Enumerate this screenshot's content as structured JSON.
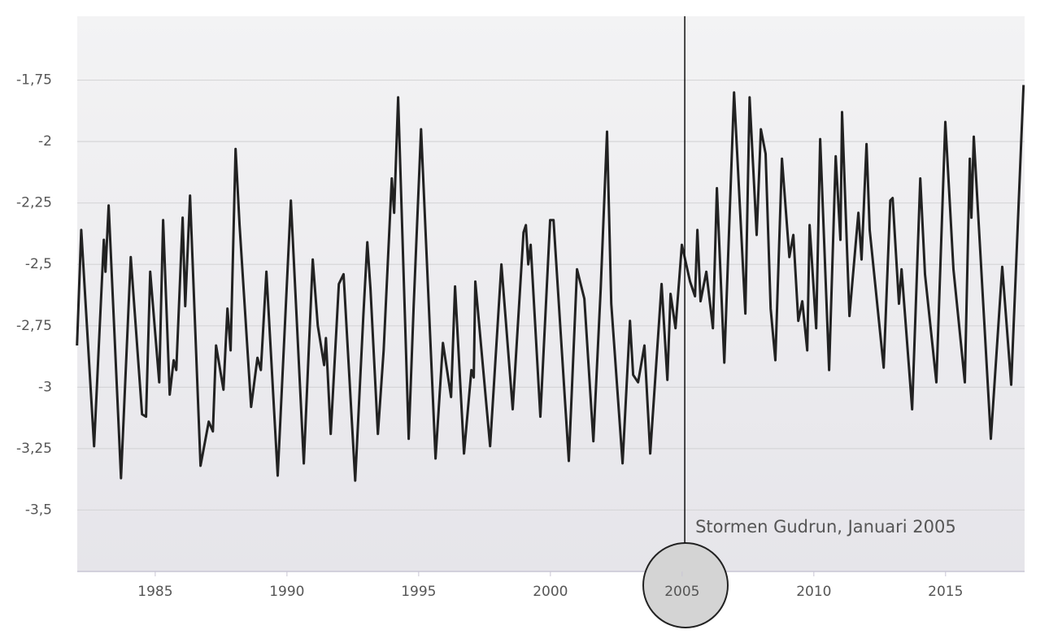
{
  "chart_data": {
    "type": "line",
    "annotation": {
      "text": "Stormen Gudrun, Januari 2005",
      "x": 2005.1
    },
    "xlim": [
      1982.04,
      2018.0
    ],
    "xticks": [
      1985,
      1990,
      1995,
      2000,
      2005,
      2010,
      2015
    ],
    "ylim": [
      -3.75,
      -1.49
    ],
    "yticks": [
      {
        "value": -1.75,
        "label": "-1,75"
      },
      -2,
      {
        "value": -2.25,
        "label": "-2,25"
      },
      {
        "value": -2.5,
        "label": "-2,5"
      },
      {
        "value": -2.75,
        "label": "-2,75"
      },
      -3,
      {
        "value": -3.25,
        "label": "-3,25"
      },
      {
        "value": -3.5,
        "label": "-3,5"
      }
    ],
    "grid": true,
    "series": [
      {
        "color": "#222222",
        "x": [
          1982.03,
          1982.19,
          1982.68,
          1983.05,
          1983.11,
          1983.23,
          1983.7,
          1984.07,
          1984.5,
          1984.65,
          1984.81,
          1985.15,
          1985.3,
          1985.55,
          1985.7,
          1985.8,
          1986.04,
          1986.14,
          1986.32,
          1986.72,
          1987.03,
          1987.19,
          1987.31,
          1987.59,
          1987.74,
          1987.86,
          1988.05,
          1988.2,
          1988.64,
          1988.88,
          1989.01,
          1989.22,
          1989.65,
          1990.15,
          1990.64,
          1990.98,
          1991.17,
          1991.41,
          1991.48,
          1991.66,
          1991.97,
          1992.15,
          1992.59,
          1992.9,
          1993.05,
          1993.17,
          1993.45,
          1993.67,
          1993.98,
          1994.07,
          1994.22,
          1994.62,
          1994.81,
          1995.09,
          1995.64,
          1995.92,
          1996.23,
          1996.38,
          1996.72,
          1997.0,
          1997.09,
          1997.15,
          1997.71,
          1998.14,
          1998.57,
          1998.98,
          1999.07,
          1999.16,
          1999.25,
          1999.62,
          1999.99,
          2000.12,
          2000.7,
          2001.01,
          2001.29,
          2001.63,
          2001.91,
          2002.15,
          2002.31,
          2002.74,
          2003.02,
          2003.14,
          2003.33,
          2003.57,
          2003.79,
          2004.22,
          2004.44,
          2004.56,
          2004.75,
          2004.99,
          2005.3,
          2005.49,
          2005.58,
          2005.7,
          2005.92,
          2006.17,
          2006.32,
          2006.6,
          2006.97,
          2007.4,
          2007.56,
          2007.83,
          2007.99,
          2008.17,
          2008.36,
          2008.54,
          2008.79,
          2009.07,
          2009.22,
          2009.41,
          2009.56,
          2009.75,
          2009.84,
          2010.09,
          2010.24,
          2010.58,
          2010.83,
          2011.01,
          2011.07,
          2011.35,
          2011.69,
          2011.81,
          2012.0,
          2012.12,
          2012.65,
          2012.9,
          2012.99,
          2013.23,
          2013.33,
          2013.73,
          2014.04,
          2014.22,
          2014.65,
          2014.99,
          2015.3,
          2015.73,
          2015.92,
          2015.98,
          2016.07,
          2016.72,
          2017.15,
          2017.49,
          2017.96
        ],
        "values": [
          -2.83,
          -2.36,
          -3.24,
          -2.4,
          -2.53,
          -2.26,
          -3.37,
          -2.47,
          -3.11,
          -3.12,
          -2.53,
          -2.98,
          -2.32,
          -3.03,
          -2.89,
          -2.93,
          -2.31,
          -2.67,
          -2.22,
          -3.32,
          -3.14,
          -3.18,
          -2.83,
          -3.01,
          -2.68,
          -2.85,
          -2.03,
          -2.34,
          -3.08,
          -2.88,
          -2.93,
          -2.53,
          -3.36,
          -2.24,
          -3.31,
          -2.48,
          -2.75,
          -2.91,
          -2.8,
          -3.19,
          -2.58,
          -2.54,
          -3.38,
          -2.71,
          -2.41,
          -2.6,
          -3.19,
          -2.85,
          -2.15,
          -2.29,
          -1.82,
          -3.21,
          -2.67,
          -1.95,
          -3.29,
          -2.82,
          -3.04,
          -2.59,
          -3.27,
          -2.93,
          -2.96,
          -2.57,
          -3.24,
          -2.5,
          -3.09,
          -2.37,
          -2.34,
          -2.5,
          -2.42,
          -3.12,
          -2.32,
          -2.32,
          -3.3,
          -2.52,
          -2.64,
          -3.22,
          -2.6,
          -1.96,
          -2.66,
          -3.31,
          -2.73,
          -2.95,
          -2.98,
          -2.83,
          -3.27,
          -2.58,
          -2.97,
          -2.62,
          -2.76,
          -2.42,
          -2.57,
          -2.63,
          -2.36,
          -2.65,
          -2.53,
          -2.76,
          -2.19,
          -2.9,
          -1.8,
          -2.7,
          -1.82,
          -2.38,
          -1.95,
          -2.05,
          -2.68,
          -2.89,
          -2.07,
          -2.47,
          -2.38,
          -2.73,
          -2.65,
          -2.85,
          -2.34,
          -2.76,
          -1.99,
          -2.93,
          -2.06,
          -2.4,
          -1.88,
          -2.71,
          -2.29,
          -2.48,
          -2.01,
          -2.36,
          -2.92,
          -2.24,
          -2.23,
          -2.66,
          -2.52,
          -3.09,
          -2.15,
          -2.54,
          -2.98,
          -1.92,
          -2.52,
          -2.98,
          -2.07,
          -2.31,
          -1.98,
          -3.21,
          -2.51,
          -2.99,
          -1.77
        ]
      }
    ]
  }
}
